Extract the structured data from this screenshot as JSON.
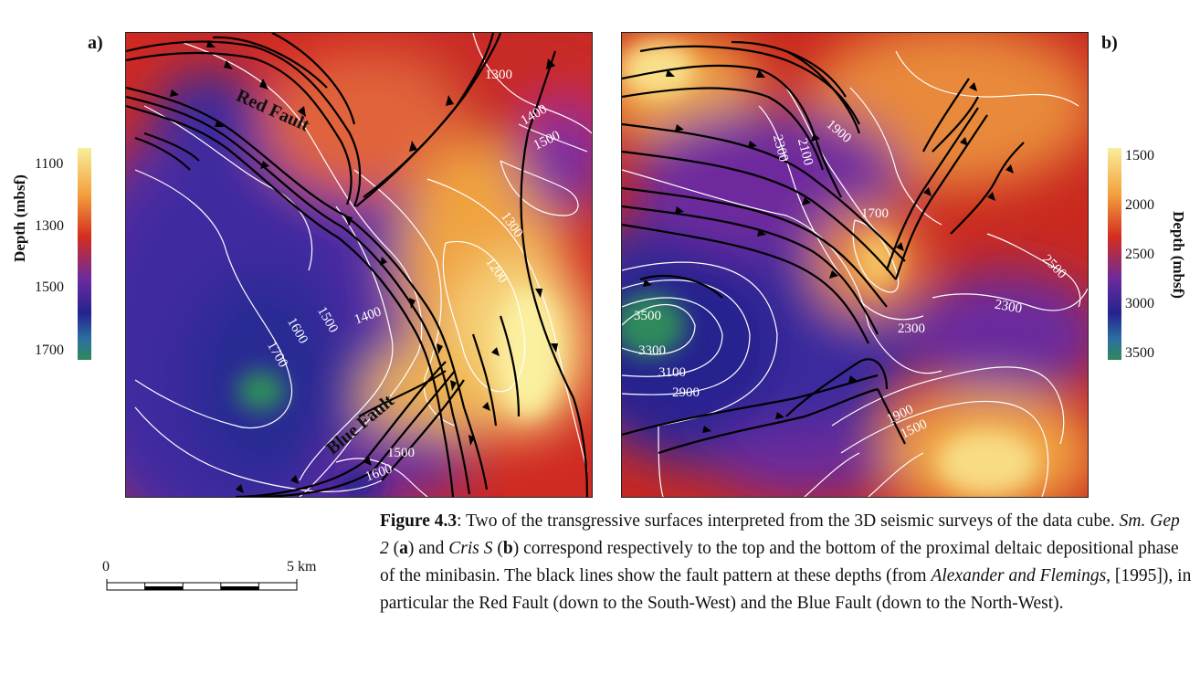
{
  "panels": {
    "a": {
      "label": "a)",
      "colorbar": {
        "title": "Depth (mbsf)",
        "ticks": [
          "1100",
          "1300",
          "1500",
          "1700"
        ]
      },
      "fault_labels": [
        "Red Fault",
        "Blue Fault"
      ],
      "contour_labels": [
        "1300",
        "1400",
        "1500",
        "1300",
        "1200",
        "1400",
        "1500",
        "1600",
        "1700",
        "1500",
        "1600"
      ]
    },
    "b": {
      "label": "b)",
      "colorbar": {
        "title": "Depth (mbsf)",
        "ticks": [
          "1500",
          "2000",
          "2500",
          "3000",
          "3500"
        ]
      },
      "contour_labels": [
        "1900",
        "2300",
        "2100",
        "1700",
        "2500",
        "2300",
        "2300",
        "3500",
        "3300",
        "3100",
        "2900",
        "1900",
        "1500"
      ]
    }
  },
  "scale_bar": {
    "start": "0",
    "end": "5 km"
  },
  "caption": {
    "figure_label": "Figure 4.3",
    "part1": ": Two of the transgressive surfaces interpreted from the 3D seismic surveys of the data cube. ",
    "survey_a": "Sm. Gep 2",
    "ref_a": "a",
    "part2": " and ",
    "survey_b": "Cris S",
    "ref_b": "b",
    "part3": " correspond respectively to the top and the bottom of the proximal deltaic depositional phase of the minibasin. The black lines show the fault pattern at these depths (from ",
    "citation": "Alexander and Flemings",
    "part4": ", [1995]), in particular the Red Fault (down to the South-West) and the Blue Fault (down to the North-West)."
  },
  "colors": {
    "shallow": "#f8ee9a",
    "mid_shallow": "#f2a03c",
    "mid": "#d42d1f",
    "mid_deep": "#6a2b9e",
    "deep": "#25238f",
    "deepest": "#2e8a5a",
    "fault_line": "#000000",
    "contour_line": "#ffffff"
  }
}
